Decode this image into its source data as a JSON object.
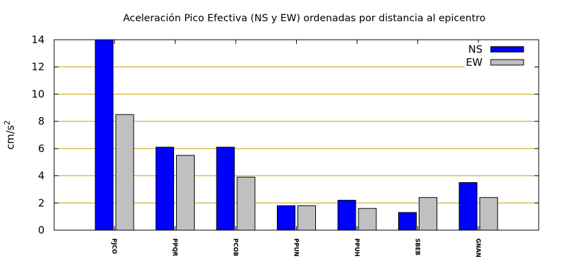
{
  "chart_data": {
    "type": "bar",
    "title": "Aceleración Pico Efectiva (NS y EW) ordenadas por distancia al epicentro",
    "ylabel_base": "cm/s",
    "ylabel_exp": "2",
    "xlabel": "",
    "ylim": [
      0,
      14
    ],
    "yticks": [
      "0",
      "2",
      "4",
      "6",
      "8",
      "10",
      "12",
      "14"
    ],
    "grid": "horizontal",
    "legend_position": "top-right",
    "categories": [
      "PJCO",
      "PPQR",
      "PCOB",
      "PPUN",
      "PPUH",
      "SBEB",
      "GNAN"
    ],
    "series": [
      {
        "name": "NS",
        "color": "#0000ff",
        "values": [
          14.0,
          6.1,
          6.1,
          1.8,
          2.2,
          1.3,
          3.5
        ]
      },
      {
        "name": "EW",
        "color": "#c0c0c0",
        "values": [
          8.5,
          5.5,
          3.9,
          1.8,
          1.6,
          2.4,
          2.4
        ]
      }
    ],
    "colors": {
      "grid": "#c8a000",
      "axis": "#000000"
    }
  }
}
